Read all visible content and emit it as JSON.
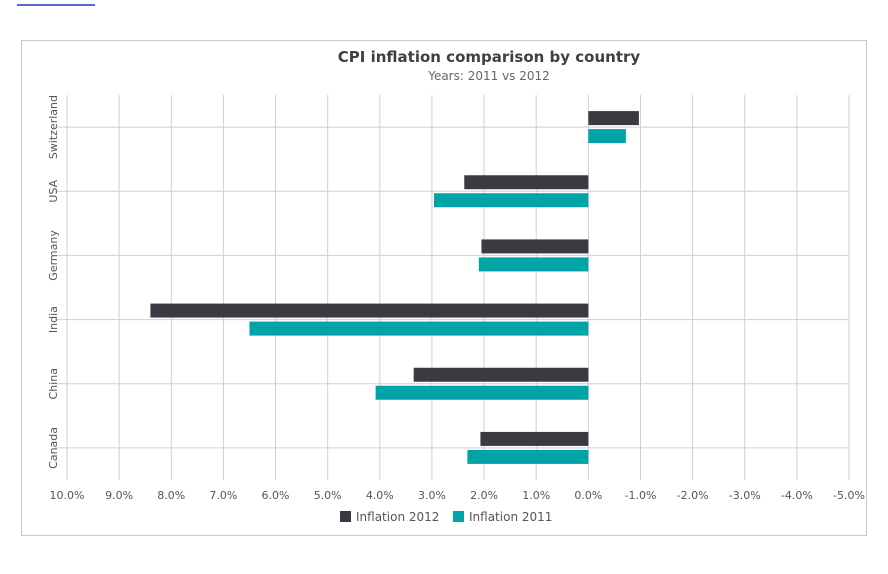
{
  "chart_data": {
    "type": "bar",
    "orientation": "horizontal",
    "title": "CPI inflation comparison by country",
    "subtitle": "Years: 2011 vs 2012",
    "categories": [
      "Switzerland",
      "USA",
      "Germany",
      "India",
      "China",
      "Canada"
    ],
    "series": [
      {
        "name": "Inflation 2012",
        "color": "#3d3943",
        "values": [
          -0.97,
          2.38,
          2.05,
          8.4,
          3.35,
          2.07
        ]
      },
      {
        "name": "Inflation 2011",
        "color": "#00a4a6",
        "values": [
          -0.72,
          2.96,
          2.1,
          6.5,
          4.08,
          2.32
        ]
      }
    ],
    "x_ticks": [
      "10.0%",
      "9.0%",
      "8.0%",
      "7.0%",
      "6.0%",
      "5.0%",
      "4.0%",
      "3.0%",
      "2.0%",
      "1.0%",
      "0.0%",
      "-1.0%",
      "-2.0%",
      "-3.0%",
      "-4.0%",
      "-5.0%"
    ],
    "xlim": [
      10,
      -5
    ],
    "x_reversed": true,
    "grid": true,
    "legend_position": "bottom"
  }
}
